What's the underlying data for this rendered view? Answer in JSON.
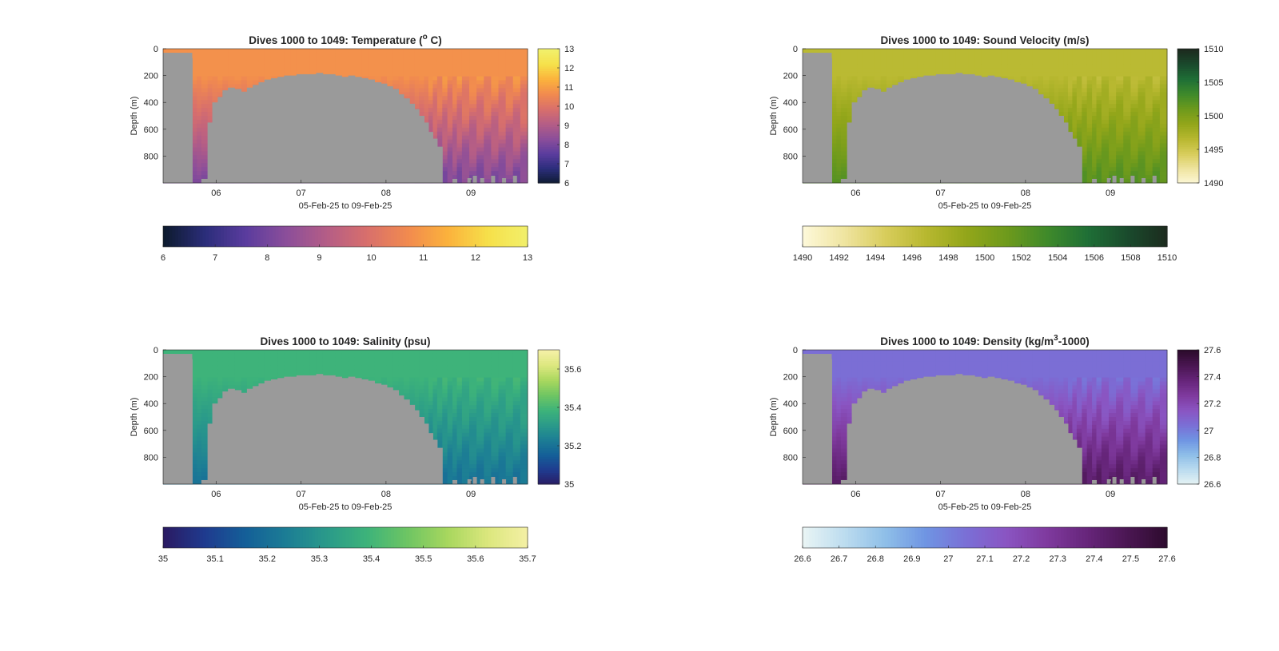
{
  "chart_data": [
    {
      "id": "temperature",
      "type": "heatmap",
      "title": "Dives 1000 to 1049: Temperature (",
      "title_sup": "o",
      "title_tail": " C)",
      "ylabel": "Depth (m)",
      "xlabel": "05-Feb-25 to 09-Feb-25",
      "xlim": [
        "05-Feb-25 09:00",
        "09-Feb-25 16:00"
      ],
      "ylim": [
        0,
        1000
      ],
      "y_reversed": true,
      "xticks": [
        {
          "date": "06-Feb-25",
          "label": "06"
        },
        {
          "date": "07-Feb-25",
          "label": "07"
        },
        {
          "date": "08-Feb-25",
          "label": "08"
        },
        {
          "date": "09-Feb-25",
          "label": "09"
        }
      ],
      "yticks": [
        0,
        200,
        400,
        600,
        800
      ],
      "colormap": [
        "#0d1b2f",
        "#2b2d7a",
        "#5a3c9e",
        "#8b4e9a",
        "#b45d86",
        "#d86f6c",
        "#f18a4f",
        "#fbb23c",
        "#f6e04a",
        "#f1f06c"
      ],
      "clim": [
        6,
        13
      ],
      "cbar_vertical_ticks": [
        "6",
        "7",
        "8",
        "9",
        "10",
        "11",
        "12",
        "13"
      ],
      "cbar_horizontal_ticks": [
        "6",
        "7",
        "8",
        "9",
        "10",
        "11",
        "12",
        "13"
      ],
      "surface_value": 10.8,
      "deep_value": 8.0,
      "max_depth": 1000,
      "nodata_color": "#9a9a9a"
    },
    {
      "id": "sound-velocity",
      "type": "heatmap",
      "title": "Dives 1000 to 1049: Sound Velocity (m/s)",
      "ylabel": "Depth (m)",
      "xlabel": "05-Feb-25 to 09-Feb-25",
      "xlim": [
        "05-Feb-25 09:00",
        "09-Feb-25 16:00"
      ],
      "ylim": [
        0,
        1000
      ],
      "y_reversed": true,
      "xticks": [
        {
          "date": "06-Feb-25",
          "label": "06"
        },
        {
          "date": "07-Feb-25",
          "label": "07"
        },
        {
          "date": "08-Feb-25",
          "label": "08"
        },
        {
          "date": "09-Feb-25",
          "label": "09"
        }
      ],
      "yticks": [
        0,
        200,
        400,
        600,
        800
      ],
      "colormap": [
        "#fdf8d8",
        "#efe4a0",
        "#d8cd5c",
        "#b8b830",
        "#93a61a",
        "#6e9a1c",
        "#3f8a2a",
        "#1f6f36",
        "#1a4a2c",
        "#1c2a1e"
      ],
      "clim": [
        1490,
        1510
      ],
      "cbar_vertical_ticks": [
        "1490",
        "1495",
        "1500",
        "1505",
        "1510"
      ],
      "cbar_horizontal_ticks": [
        "1490",
        "1492",
        "1494",
        "1496",
        "1498",
        "1500",
        "1502",
        "1504",
        "1506",
        "1508",
        "1510"
      ],
      "surface_value": 1496.5,
      "deep_value": 1502.5,
      "max_depth": 1000,
      "nodata_color": "#9a9a9a"
    },
    {
      "id": "salinity",
      "type": "heatmap",
      "title": "Dives 1000 to 1049: Salinity (psu)",
      "ylabel": "Depth (m)",
      "xlabel": "05-Feb-25 to 09-Feb-25",
      "xlim": [
        "05-Feb-25 09:00",
        "09-Feb-25 16:00"
      ],
      "ylim": [
        0,
        1000
      ],
      "y_reversed": true,
      "xticks": [
        {
          "date": "06-Feb-25",
          "label": "06"
        },
        {
          "date": "07-Feb-25",
          "label": "07"
        },
        {
          "date": "08-Feb-25",
          "label": "08"
        },
        {
          "date": "09-Feb-25",
          "label": "09"
        }
      ],
      "yticks": [
        0,
        200,
        400,
        600,
        800
      ],
      "colormap": [
        "#2a1b63",
        "#1f3b8f",
        "#145f98",
        "#1c7d95",
        "#2a9a8a",
        "#3db37a",
        "#6ec563",
        "#a8d75e",
        "#dce77e",
        "#f5f0a6"
      ],
      "clim": [
        35,
        35.7
      ],
      "cbar_vertical_ticks": [
        "35",
        "35.2",
        "35.4",
        "35.6"
      ],
      "cbar_horizontal_ticks": [
        "35",
        "35.1",
        "35.2",
        "35.3",
        "35.4",
        "35.5",
        "35.6",
        "35.7"
      ],
      "surface_value": 35.39,
      "deep_value": 35.2,
      "max_depth": 1000,
      "nodata_color": "#9a9a9a"
    },
    {
      "id": "density",
      "type": "heatmap",
      "title": "Dives 1000 to 1049: Density (kg/m",
      "title_sup": "3",
      "title_tail": "-1000)",
      "ylabel": "Depth (m)",
      "xlabel": "05-Feb-25 to 09-Feb-25",
      "xlim": [
        "05-Feb-25 09:00",
        "09-Feb-25 16:00"
      ],
      "ylim": [
        0,
        1000
      ],
      "y_reversed": true,
      "xticks": [
        {
          "date": "06-Feb-25",
          "label": "06"
        },
        {
          "date": "07-Feb-25",
          "label": "07"
        },
        {
          "date": "08-Feb-25",
          "label": "08"
        },
        {
          "date": "09-Feb-25",
          "label": "09"
        }
      ],
      "yticks": [
        0,
        200,
        400,
        600,
        800
      ],
      "colormap": [
        "#e8f4f4",
        "#bcdcef",
        "#8fbfe8",
        "#6f95e3",
        "#7a6fd6",
        "#8a55c2",
        "#7f3a9e",
        "#66257a",
        "#4a1652",
        "#2c0b2c"
      ],
      "clim": [
        26.6,
        27.6
      ],
      "cbar_vertical_ticks": [
        "26.6",
        "26.8",
        "27",
        "27.2",
        "27.4",
        "27.6"
      ],
      "cbar_horizontal_ticks": [
        "26.6",
        "26.7",
        "26.8",
        "26.9",
        "27",
        "27.1",
        "27.2",
        "27.3",
        "27.4",
        "27.5",
        "27.6"
      ],
      "surface_value": 27.05,
      "deep_value": 27.45,
      "max_depth": 1000,
      "nodata_color": "#9a9a9a"
    }
  ]
}
